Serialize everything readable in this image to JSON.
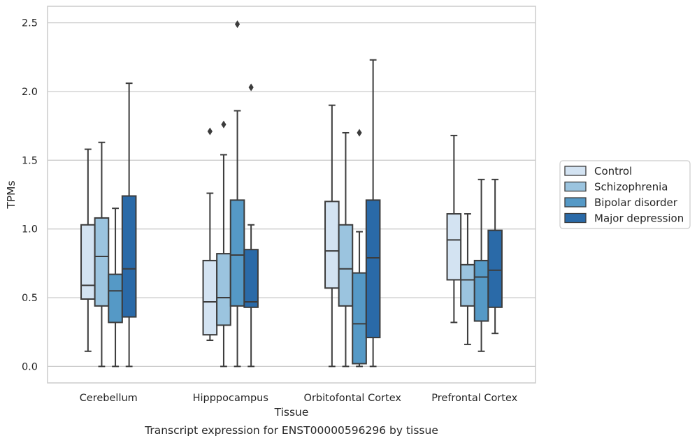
{
  "chart_data": {
    "type": "box",
    "xlabel": "Tissue",
    "ylabel": "TPMs",
    "caption": "Transcript expression for ENST00000596296 by tissue",
    "ylim": [
      -0.12,
      2.62
    ],
    "yticks": [
      0.0,
      0.5,
      1.0,
      1.5,
      2.0,
      2.5
    ],
    "ytick_labels": [
      "0.0",
      "0.5",
      "1.0",
      "1.5",
      "2.0",
      "2.5"
    ],
    "grid": "horizontal",
    "legend_position": "right",
    "categories": [
      "Cerebellum",
      "Hipppocampus",
      "Orbitofontal Cortex",
      "Prefrontal Cortex"
    ],
    "series": [
      {
        "name": "Control",
        "color": "#d3e3f2",
        "boxes": [
          {
            "whisker_low": 0.11,
            "q1": 0.49,
            "median": 0.59,
            "q3": 1.03,
            "whisker_high": 1.58,
            "outliers": []
          },
          {
            "whisker_low": 0.19,
            "q1": 0.23,
            "median": 0.47,
            "q3": 0.77,
            "whisker_high": 1.26,
            "outliers": [
              1.71
            ]
          },
          {
            "whisker_low": 0.0,
            "q1": 0.57,
            "median": 0.84,
            "q3": 1.2,
            "whisker_high": 1.9,
            "outliers": []
          },
          {
            "whisker_low": 0.32,
            "q1": 0.63,
            "median": 0.92,
            "q3": 1.11,
            "whisker_high": 1.68,
            "outliers": []
          }
        ]
      },
      {
        "name": "Schizophrenia",
        "color": "#9bc4df",
        "boxes": [
          {
            "whisker_low": 0.0,
            "q1": 0.44,
            "median": 0.8,
            "q3": 1.08,
            "whisker_high": 1.63,
            "outliers": []
          },
          {
            "whisker_low": 0.0,
            "q1": 0.3,
            "median": 0.5,
            "q3": 0.82,
            "whisker_high": 1.54,
            "outliers": [
              1.76
            ]
          },
          {
            "whisker_low": 0.0,
            "q1": 0.44,
            "median": 0.71,
            "q3": 1.03,
            "whisker_high": 1.7,
            "outliers": []
          },
          {
            "whisker_low": 0.16,
            "q1": 0.44,
            "median": 0.63,
            "q3": 0.74,
            "whisker_high": 1.11,
            "outliers": []
          }
        ]
      },
      {
        "name": "Bipolar disorder",
        "color": "#5599c6",
        "boxes": [
          {
            "whisker_low": 0.0,
            "q1": 0.32,
            "median": 0.55,
            "q3": 0.67,
            "whisker_high": 1.15,
            "outliers": []
          },
          {
            "whisker_low": 0.0,
            "q1": 0.44,
            "median": 0.81,
            "q3": 1.21,
            "whisker_high": 1.86,
            "outliers": [
              2.49
            ]
          },
          {
            "whisker_low": 0.0,
            "q1": 0.02,
            "median": 0.31,
            "q3": 0.68,
            "whisker_high": 0.98,
            "outliers": [
              1.7
            ]
          },
          {
            "whisker_low": 0.11,
            "q1": 0.33,
            "median": 0.65,
            "q3": 0.77,
            "whisker_high": 1.36,
            "outliers": []
          }
        ]
      },
      {
        "name": "Major depression",
        "color": "#2a6aa8",
        "boxes": [
          {
            "whisker_low": 0.0,
            "q1": 0.36,
            "median": 0.71,
            "q3": 1.24,
            "whisker_high": 2.06,
            "outliers": []
          },
          {
            "whisker_low": 0.0,
            "q1": 0.43,
            "median": 0.47,
            "q3": 0.85,
            "whisker_high": 1.03,
            "outliers": [
              2.03
            ]
          },
          {
            "whisker_low": 0.0,
            "q1": 0.21,
            "median": 0.79,
            "q3": 1.21,
            "whisker_high": 2.23,
            "outliers": []
          },
          {
            "whisker_low": 0.24,
            "q1": 0.43,
            "median": 0.7,
            "q3": 0.99,
            "whisker_high": 1.36,
            "outliers": []
          }
        ]
      }
    ]
  }
}
